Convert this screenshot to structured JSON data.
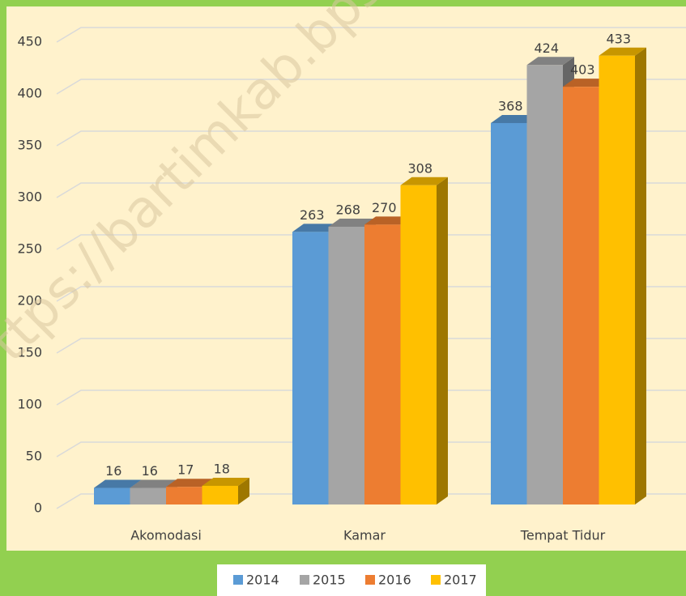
{
  "chart_data": {
    "type": "bar3d",
    "watermark": "ttps://bartimkab.bps.",
    "categories": [
      "Akomodasi",
      "Kamar",
      "Tempat Tidur"
    ],
    "series": [
      {
        "name": "2014",
        "color": "#5b9bd5",
        "values": [
          16,
          263,
          368
        ]
      },
      {
        "name": "2015",
        "color": "#a5a5a5",
        "values": [
          16,
          268,
          424
        ]
      },
      {
        "name": "2016",
        "color": "#ed7d31",
        "values": [
          17,
          270,
          403
        ]
      },
      {
        "name": "2017",
        "color": "#ffc000",
        "values": [
          18,
          308,
          433
        ]
      }
    ],
    "ylim": [
      0,
      450
    ],
    "yticks": [
      0,
      50,
      100,
      150,
      200,
      250,
      300,
      350,
      400,
      450
    ],
    "grid": true,
    "legend": "bottom"
  }
}
